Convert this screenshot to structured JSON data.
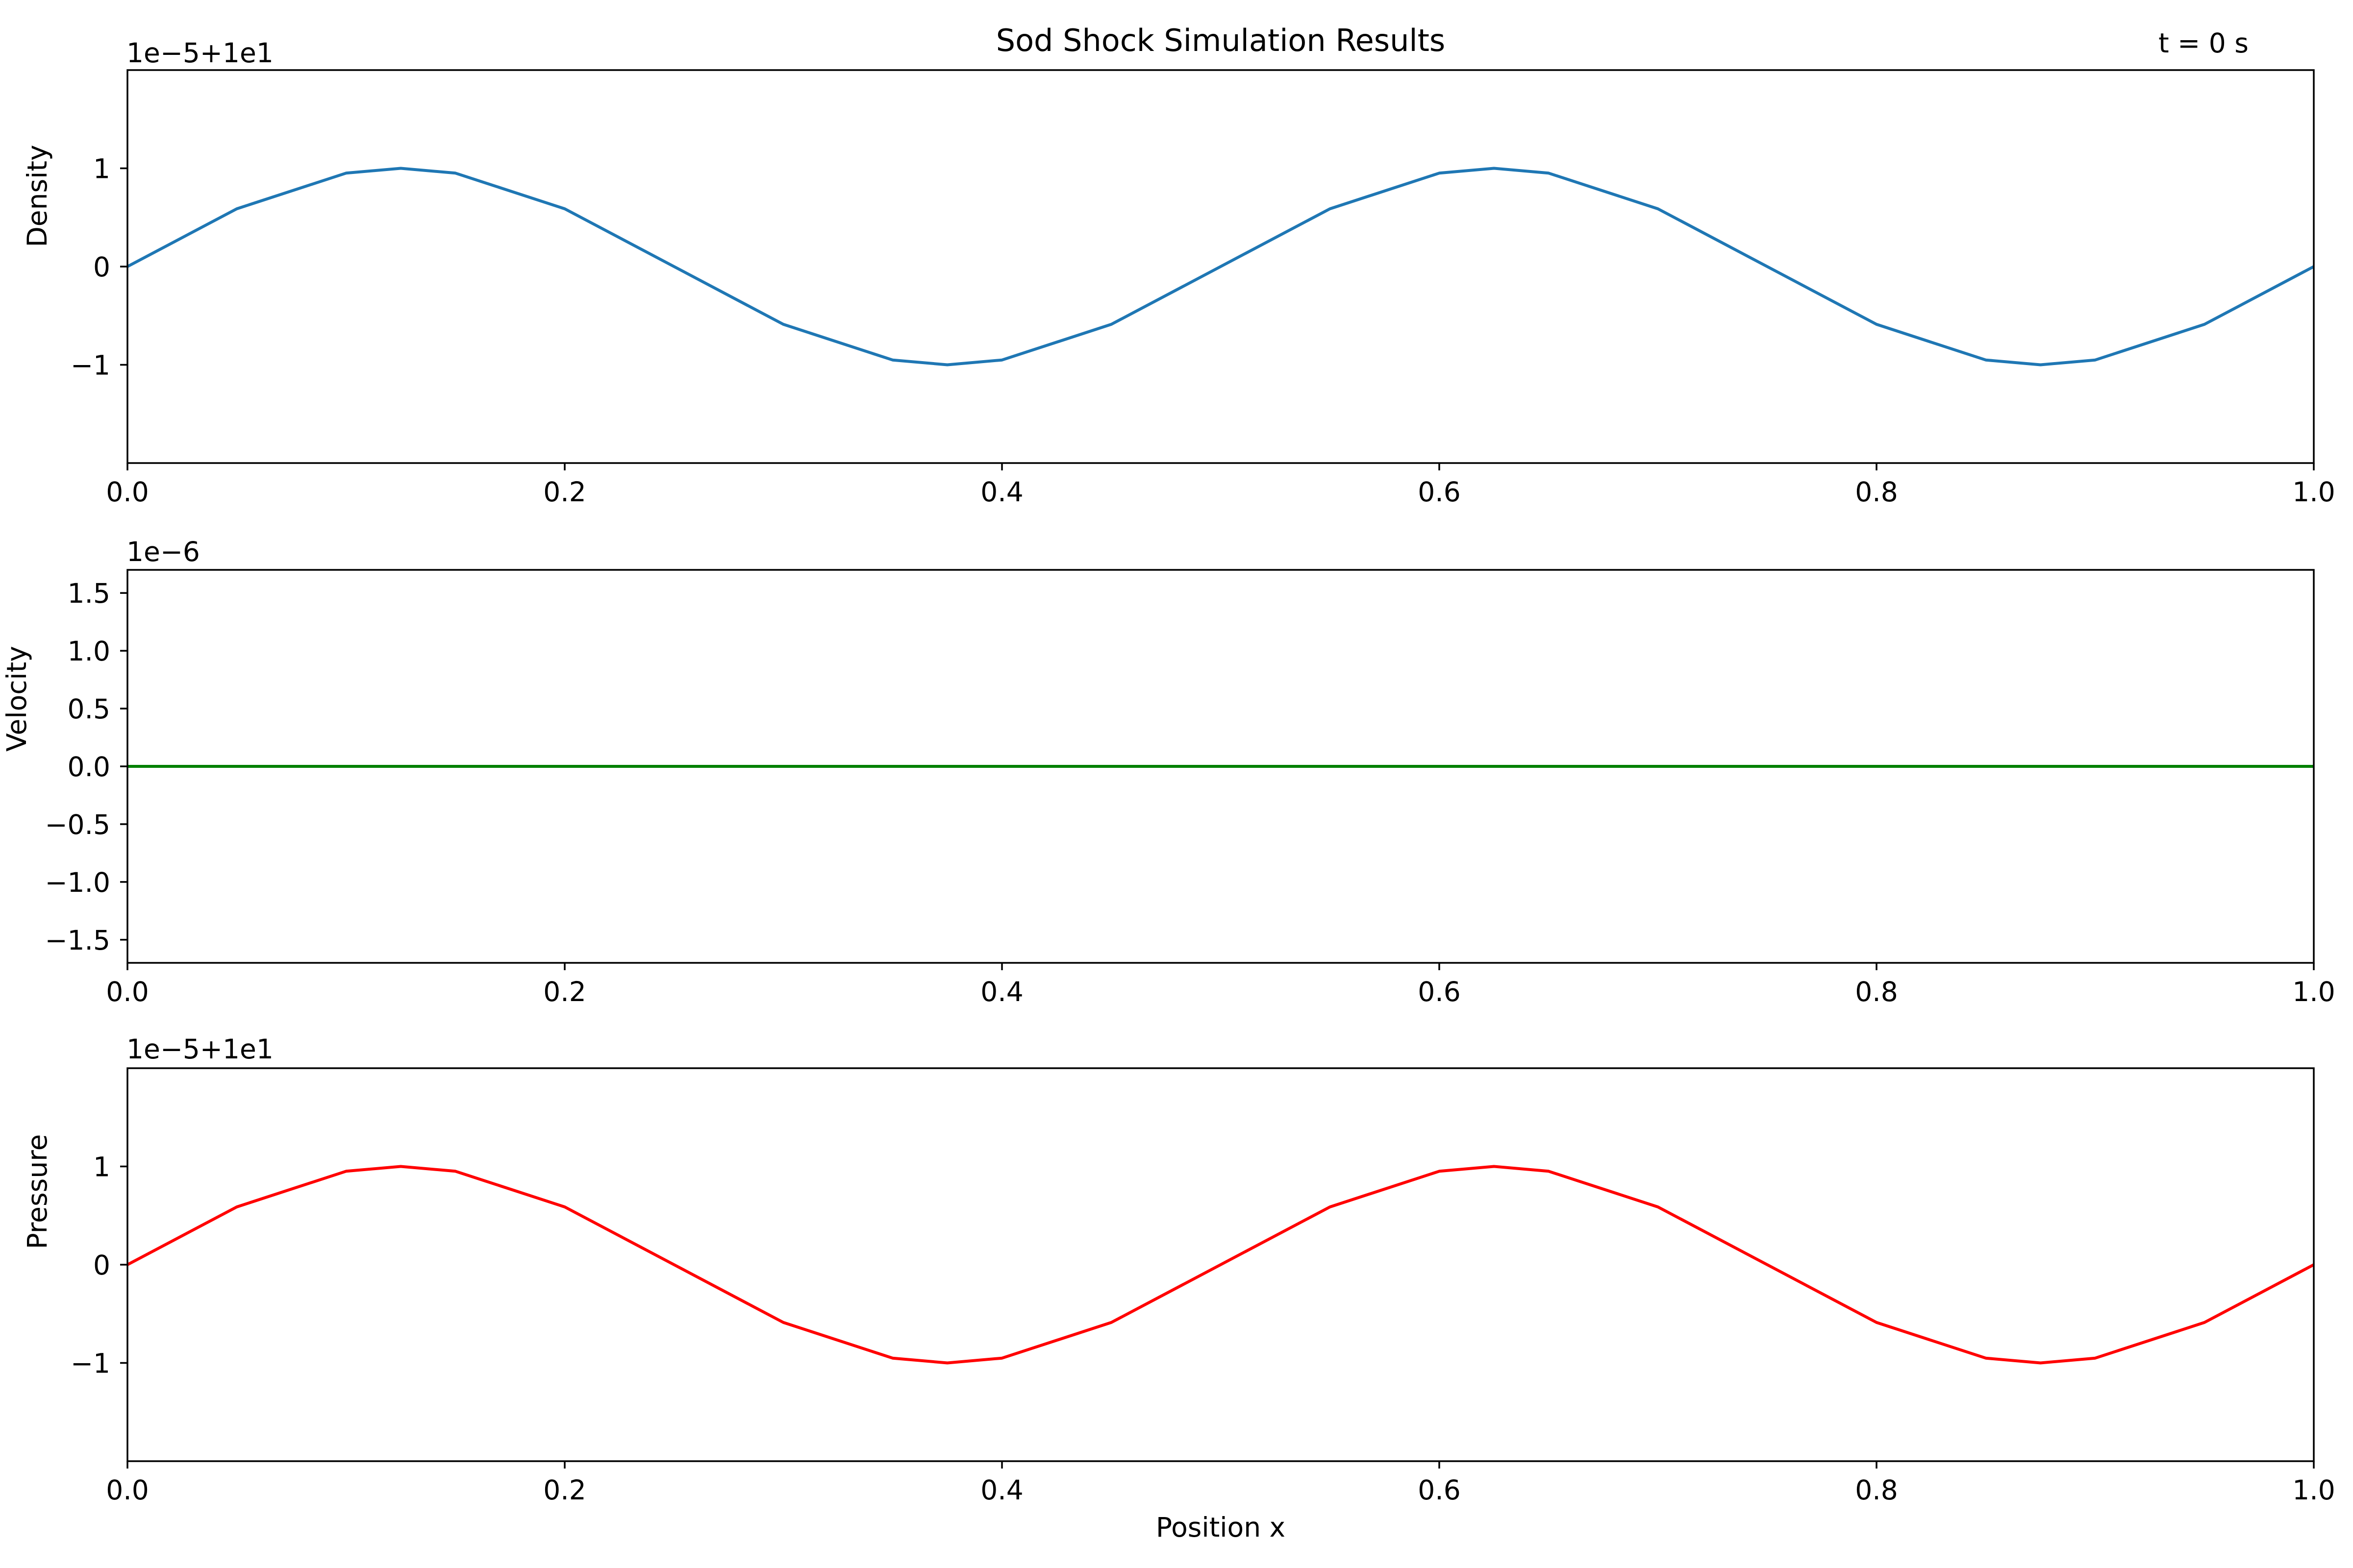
{
  "figure": {
    "title": "Sod Shock Simulation Results",
    "time_label": "t = 0 s",
    "xlabel": "Position x"
  },
  "chart_data": [
    {
      "type": "line",
      "ylabel": "Density",
      "offset_label": "1e−5+1e1",
      "color": "#1f77b4",
      "xlim": [
        0,
        1
      ],
      "ylim": [
        -2,
        2
      ],
      "xticks": [
        0.0,
        0.2,
        0.4,
        0.6,
        0.8,
        1.0
      ],
      "xtick_labels": [
        "0.0",
        "0.2",
        "0.4",
        "0.6",
        "0.8",
        "1.0"
      ],
      "yticks": [
        -1,
        0,
        1
      ],
      "ytick_labels": [
        "−1",
        "0",
        "1"
      ],
      "series": [
        {
          "x": [
            0,
            0.05,
            0.1,
            0.125,
            0.15,
            0.2,
            0.25,
            0.3,
            0.35,
            0.375,
            0.4,
            0.45,
            0.5,
            0.55,
            0.6,
            0.625,
            0.65,
            0.7,
            0.75,
            0.8,
            0.85,
            0.875,
            0.9,
            0.95,
            1.0
          ],
          "y": [
            0,
            0.588,
            0.951,
            1,
            0.951,
            0.588,
            0,
            -0.588,
            -0.951,
            -1,
            -0.951,
            -0.588,
            0,
            0.588,
            0.951,
            1,
            0.951,
            0.588,
            0,
            -0.588,
            -0.951,
            -1,
            -0.951,
            -0.588,
            0
          ]
        }
      ]
    },
    {
      "type": "line",
      "ylabel": "Velocity",
      "offset_label": "1e−6",
      "color": "#008000",
      "xlim": [
        0,
        1
      ],
      "ylim": [
        -1.7,
        1.7
      ],
      "xticks": [
        0.0,
        0.2,
        0.4,
        0.6,
        0.8,
        1.0
      ],
      "xtick_labels": [
        "0.0",
        "0.2",
        "0.4",
        "0.6",
        "0.8",
        "1.0"
      ],
      "yticks": [
        -1.5,
        -1.0,
        -0.5,
        0.0,
        0.5,
        1.0,
        1.5
      ],
      "ytick_labels": [
        "−1.5",
        "−1.0",
        "−0.5",
        "0.0",
        "0.5",
        "1.0",
        "1.5"
      ],
      "series": [
        {
          "x": [
            0,
            1.0
          ],
          "y": [
            0,
            0
          ]
        }
      ]
    },
    {
      "type": "line",
      "ylabel": "Pressure",
      "offset_label": "1e−5+1e1",
      "color": "#ff0000",
      "xlim": [
        0,
        1
      ],
      "ylim": [
        -2,
        2
      ],
      "xticks": [
        0.0,
        0.2,
        0.4,
        0.6,
        0.8,
        1.0
      ],
      "xtick_labels": [
        "0.0",
        "0.2",
        "0.4",
        "0.6",
        "0.8",
        "1.0"
      ],
      "yticks": [
        -1,
        0,
        1
      ],
      "ytick_labels": [
        "−1",
        "0",
        "1"
      ],
      "series": [
        {
          "x": [
            0,
            0.05,
            0.1,
            0.125,
            0.15,
            0.2,
            0.25,
            0.3,
            0.35,
            0.375,
            0.4,
            0.45,
            0.5,
            0.55,
            0.6,
            0.625,
            0.65,
            0.7,
            0.75,
            0.8,
            0.85,
            0.875,
            0.9,
            0.95,
            1.0
          ],
          "y": [
            0,
            0.588,
            0.951,
            1,
            0.951,
            0.588,
            0,
            -0.588,
            -0.951,
            -1,
            -0.951,
            -0.588,
            0,
            0.588,
            0.951,
            1,
            0.951,
            0.588,
            0,
            -0.588,
            -0.951,
            -1,
            -0.951,
            -0.588,
            0
          ]
        }
      ]
    }
  ]
}
